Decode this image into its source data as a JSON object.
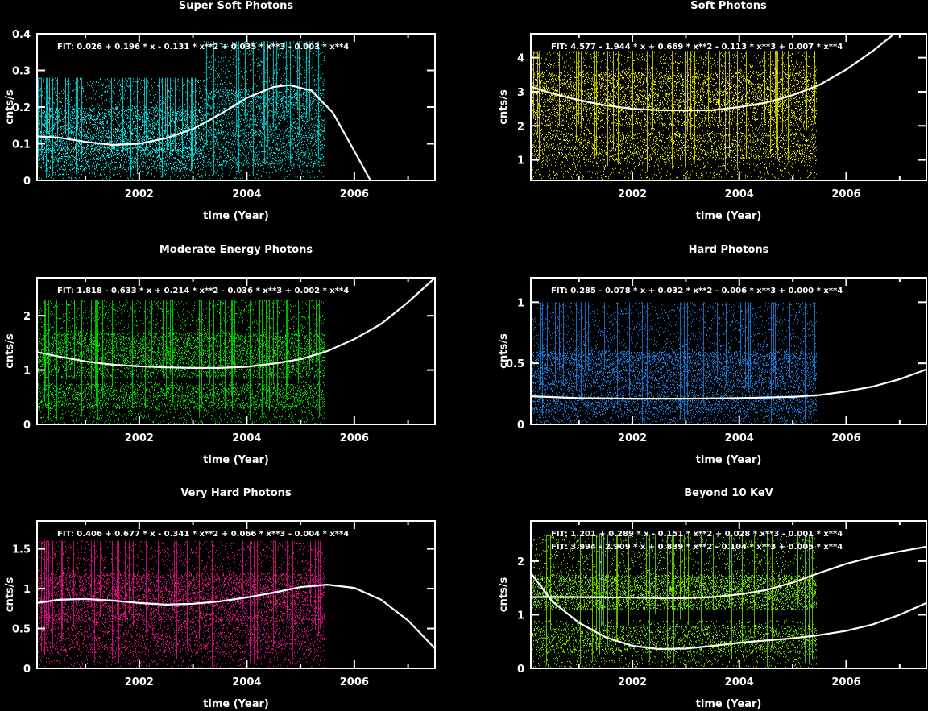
{
  "chart_data": [
    {
      "type": "scatter",
      "title": "Super Soft Photons",
      "xlabel": "time (Year)",
      "ylabel": "cnts/s",
      "xlim": [
        2000.1,
        2007.5
      ],
      "ylim": [
        0,
        0.4
      ],
      "xticks": [
        2002,
        2004,
        2006
      ],
      "yticks": [
        0,
        0.1,
        0.2,
        0.3,
        0.4
      ],
      "ytick_labels": [
        "0",
        "0.1",
        "0.2",
        "0.3",
        "0.4"
      ],
      "point_color": "#00ffff",
      "fit_labels": [
        "FIT:  0.026 + 0.196 * x - 0.131 * x**2 + 0.035 * x**3 - 0.003 * x**4"
      ],
      "fit_curves": [
        {
          "x": [
            2000.1,
            2000.5,
            2001.0,
            2001.5,
            2002.0,
            2002.5,
            2003.0,
            2003.5,
            2004.0,
            2004.5,
            2004.8,
            2005.2,
            2005.6,
            2006.0,
            2006.3
          ],
          "y": [
            0.12,
            0.117,
            0.105,
            0.097,
            0.1,
            0.115,
            0.14,
            0.18,
            0.225,
            0.255,
            0.26,
            0.245,
            0.185,
            0.08,
            0.0
          ]
        }
      ],
      "data_bands": [
        {
          "x": [
            2000.1,
            2003.2
          ],
          "bins": [
            [
              0.005,
              0.12
            ],
            [
              0.03,
              0.09
            ],
            [
              0.08,
              0.2
            ],
            [
              0.12,
              0.28
            ]
          ]
        },
        {
          "x": [
            2003.2,
            2005.45
          ],
          "bins": [
            [
              0.005,
              0.14
            ],
            [
              0.04,
              0.12
            ],
            [
              0.12,
              0.25
            ],
            [
              0.2,
              0.38
            ]
          ]
        }
      ]
    },
    {
      "type": "scatter",
      "title": "Soft Photons",
      "xlabel": "time (Year)",
      "ylabel": "cnts/s",
      "xlim": [
        2000.1,
        2007.5
      ],
      "ylim": [
        0.4,
        4.7
      ],
      "xticks": [
        2002,
        2004,
        2006
      ],
      "yticks": [
        1,
        2,
        3,
        4
      ],
      "ytick_labels": [
        "1",
        "2",
        "3",
        "4"
      ],
      "point_color": "#ffff00",
      "fit_labels": [
        "FIT:  4.577 - 1.944 * x + 0.669 * x**2 - 0.113 * x**3 + 0.007 * x**4"
      ],
      "fit_curves": [
        {
          "x": [
            2000.1,
            2000.5,
            2001.0,
            2001.5,
            2002.0,
            2002.5,
            2003.0,
            2003.5,
            2004.0,
            2004.5,
            2005.0,
            2005.5,
            2006.0,
            2006.5,
            2006.9
          ],
          "y": [
            3.15,
            2.95,
            2.75,
            2.6,
            2.5,
            2.46,
            2.45,
            2.46,
            2.55,
            2.68,
            2.9,
            3.2,
            3.65,
            4.2,
            4.7
          ]
        }
      ],
      "data_bands": [
        {
          "x": [
            2000.1,
            2005.45
          ],
          "bins": [
            [
              0.45,
              2.0
            ],
            [
              1.0,
              1.8
            ],
            [
              2.0,
              3.6
            ],
            [
              2.4,
              4.2
            ]
          ]
        }
      ]
    },
    {
      "type": "scatter",
      "title": "Moderate Energy Photons",
      "xlabel": "time (Year)",
      "ylabel": "cnts/s",
      "xlim": [
        2000.1,
        2007.5
      ],
      "ylim": [
        0,
        2.7
      ],
      "xticks": [
        2002,
        2004,
        2006
      ],
      "yticks": [
        0,
        1,
        2
      ],
      "ytick_labels": [
        "0",
        "1",
        "2"
      ],
      "point_color": "#00ff00",
      "fit_labels": [
        "FIT:  1.818 - 0.633 * x + 0.214 * x**2 - 0.036 * x**3 + 0.002 * x**4"
      ],
      "fit_curves": [
        {
          "x": [
            2000.1,
            2000.5,
            2001.0,
            2001.5,
            2002.0,
            2002.5,
            2003.0,
            2003.5,
            2004.0,
            2004.5,
            2005.0,
            2005.5,
            2006.0,
            2006.5,
            2007.0,
            2007.5
          ],
          "y": [
            1.33,
            1.25,
            1.16,
            1.1,
            1.07,
            1.05,
            1.04,
            1.04,
            1.06,
            1.12,
            1.2,
            1.35,
            1.57,
            1.85,
            2.25,
            2.7
          ]
        }
      ],
      "data_bands": [
        {
          "x": [
            2000.1,
            2005.45
          ],
          "bins": [
            [
              0.02,
              0.8
            ],
            [
              0.3,
              0.75
            ],
            [
              0.85,
              1.7
            ],
            [
              1.1,
              2.3
            ]
          ]
        }
      ]
    },
    {
      "type": "scatter",
      "title": "Hard Photons",
      "xlabel": "time (Year)",
      "ylabel": "cnts/s",
      "xlim": [
        2000.1,
        2007.5
      ],
      "ylim": [
        0,
        1.2
      ],
      "xticks": [
        2002,
        2004,
        2006
      ],
      "yticks": [
        0,
        0.5,
        1
      ],
      "ytick_labels": [
        "0",
        "0.5",
        "1"
      ],
      "point_color": "#1e90ff",
      "fit_labels": [
        "FIT:  0.285 - 0.078 * x + 0.032 * x**2 - 0.006 * x**3 + 0.000 * x**4"
      ],
      "fit_curves": [
        {
          "x": [
            2000.1,
            2001.0,
            2002.0,
            2003.0,
            2004.0,
            2005.0,
            2005.5,
            2006.0,
            2006.5,
            2007.0,
            2007.5
          ],
          "y": [
            0.23,
            0.215,
            0.21,
            0.21,
            0.215,
            0.225,
            0.24,
            0.27,
            0.31,
            0.37,
            0.45
          ]
        }
      ],
      "data_bands": [
        {
          "x": [
            2000.1,
            2005.45
          ],
          "bins": [
            [
              0.0,
              0.25
            ],
            [
              0.1,
              0.3
            ],
            [
              0.3,
              0.6
            ],
            [
              0.5,
              1.0
            ]
          ]
        }
      ]
    },
    {
      "type": "scatter",
      "title": "Very Hard  Photons",
      "xlabel": "time (Year)",
      "ylabel": "cnts/s",
      "xlim": [
        2000.1,
        2007.5
      ],
      "ylim": [
        0,
        1.85
      ],
      "xticks": [
        2002,
        2004,
        2006
      ],
      "yticks": [
        0,
        0.5,
        1,
        1.5
      ],
      "ytick_labels": [
        "0",
        "0.5",
        "1",
        "1.5"
      ],
      "point_color": "#ff1493",
      "fit_labels": [
        "FIT:  0.406 + 0.677 * x - 0.341 * x**2 + 0.066 * x**3 - 0.004 * x**4"
      ],
      "fit_curves": [
        {
          "x": [
            2000.1,
            2000.5,
            2001.0,
            2001.5,
            2002.0,
            2002.5,
            2003.0,
            2003.5,
            2004.0,
            2004.5,
            2005.0,
            2005.5,
            2006.0,
            2006.5,
            2007.0,
            2007.5
          ],
          "y": [
            0.82,
            0.86,
            0.87,
            0.85,
            0.82,
            0.8,
            0.81,
            0.84,
            0.89,
            0.95,
            1.02,
            1.05,
            1.01,
            0.86,
            0.6,
            0.25
          ]
        }
      ],
      "data_bands": [
        {
          "x": [
            2000.1,
            2005.45
          ],
          "bins": [
            [
              0.0,
              0.6
            ],
            [
              0.2,
              0.7
            ],
            [
              0.6,
              1.2
            ],
            [
              0.8,
              1.6
            ]
          ]
        }
      ]
    },
    {
      "type": "scatter",
      "title": "Beyond 10 KeV",
      "xlabel": "time (Year)",
      "ylabel": "cnts/s",
      "xlim": [
        2000.1,
        2007.5
      ],
      "ylim": [
        0,
        2.75
      ],
      "xticks": [
        2002,
        2004,
        2006
      ],
      "yticks": [
        0,
        1,
        2
      ],
      "ytick_labels": [
        "0",
        "1",
        "2"
      ],
      "point_color": "#7fff00",
      "fit_labels": [
        "FIT:  1.201 + 0.289 * x - 0.151 * x**2 + 0.028 * x**3 - 0.001 * x**4",
        "FIT:  3.994 - 2.909 * x + 0.839 * x**2 - 0.104 * x**3 + 0.005 * x**4"
      ],
      "fit_curves": [
        {
          "x": [
            2000.1,
            2001.0,
            2002.0,
            2002.5,
            2003.0,
            2003.5,
            2004.0,
            2004.5,
            2005.0,
            2005.5,
            2006.0,
            2006.5,
            2007.0,
            2007.5
          ],
          "y": [
            1.33,
            1.33,
            1.32,
            1.31,
            1.31,
            1.33,
            1.38,
            1.46,
            1.6,
            1.78,
            1.95,
            2.08,
            2.18,
            2.27
          ]
        },
        {
          "x": [
            2000.1,
            2000.5,
            2001.0,
            2001.5,
            2002.0,
            2002.5,
            2003.0,
            2003.5,
            2004.0,
            2004.5,
            2005.0,
            2005.5,
            2006.0,
            2006.5,
            2007.0,
            2007.5
          ],
          "y": [
            1.78,
            1.25,
            0.85,
            0.58,
            0.42,
            0.36,
            0.37,
            0.42,
            0.48,
            0.52,
            0.56,
            0.62,
            0.7,
            0.82,
            1.0,
            1.22
          ]
        }
      ],
      "data_bands": [
        {
          "x": [
            2000.1,
            2005.45
          ],
          "bins": [
            [
              0.0,
              0.9
            ],
            [
              0.3,
              0.8
            ],
            [
              1.1,
              1.75
            ],
            [
              1.3,
              2.5
            ]
          ]
        }
      ]
    }
  ]
}
